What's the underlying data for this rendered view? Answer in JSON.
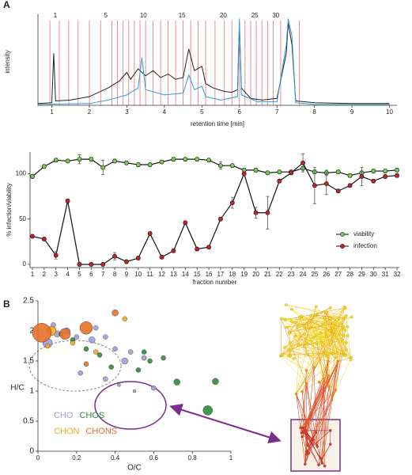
{
  "panel_labels": [
    "A",
    "B"
  ],
  "chart_data": [
    {
      "type": "line",
      "ylabel": "intensity",
      "xlabel": "retention time [min]",
      "xlim": [
        0.63,
        10.2
      ],
      "xticks": [
        1,
        2,
        3,
        4,
        5,
        6,
        7,
        8,
        9,
        10
      ],
      "ylim": [
        0,
        105
      ],
      "series": [
        {
          "color": "#222222",
          "x": [
            0.63,
            1.0,
            1.05,
            1.1,
            1.5,
            2.0,
            2.5,
            2.8,
            3.0,
            3.1,
            3.3,
            3.5,
            3.7,
            3.9,
            4.1,
            4.3,
            4.5,
            4.65,
            4.8,
            5.0,
            5.1,
            5.3,
            5.6,
            5.8,
            5.95,
            6.0,
            6.05,
            6.3,
            6.6,
            7.0,
            7.25,
            7.3,
            7.4,
            7.5,
            8.0,
            9.0,
            10.0
          ],
          "values": [
            2,
            3,
            60,
            5,
            6,
            10,
            20,
            28,
            38,
            30,
            42,
            34,
            40,
            32,
            36,
            30,
            32,
            65,
            40,
            45,
            25,
            20,
            16,
            15,
            18,
            95,
            20,
            8,
            6,
            8,
            60,
            95,
            70,
            5,
            3,
            2,
            2
          ]
        },
        {
          "color": "#2a9fd6",
          "x": [
            0.63,
            2.0,
            2.5,
            3.0,
            3.3,
            3.4,
            3.5,
            4.0,
            4.5,
            4.65,
            4.8,
            5.0,
            5.1,
            5.5,
            5.95,
            6.0,
            6.05,
            6.5,
            7.0,
            7.25,
            7.3,
            7.4,
            7.5,
            8.0,
            10.0
          ],
          "values": [
            1,
            2,
            6,
            12,
            20,
            55,
            18,
            12,
            14,
            35,
            18,
            22,
            10,
            6,
            10,
            100,
            12,
            4,
            4,
            70,
            100,
            80,
            3,
            1,
            1
          ]
        }
      ],
      "fraction_line_color": "#e8707c",
      "fraction_boundaries": [
        0.95,
        1.2,
        1.45,
        1.7,
        2.0,
        2.3,
        2.6,
        2.75,
        2.9,
        3.05,
        3.2,
        3.35,
        3.5,
        3.7,
        3.9,
        4.1,
        4.3,
        4.5,
        4.7,
        4.9,
        5.1,
        5.35,
        5.6,
        5.8,
        6.0,
        6.15,
        6.3,
        6.45,
        6.6,
        6.75,
        6.9,
        7.1,
        7.6
      ],
      "fraction_labels": [
        {
          "x": 1.09,
          "text": "1"
        },
        {
          "x": 2.44,
          "text": "5"
        },
        {
          "x": 3.44,
          "text": "10"
        },
        {
          "x": 4.47,
          "text": "15"
        },
        {
          "x": 5.57,
          "text": "20"
        },
        {
          "x": 6.41,
          "text": "25"
        },
        {
          "x": 6.97,
          "text": "30"
        }
      ]
    },
    {
      "type": "line",
      "ylabel": "% infection/viability",
      "xlabel": "fraction number",
      "x": [
        1,
        2,
        3,
        4,
        5,
        6,
        7,
        8,
        9,
        10,
        11,
        12,
        13,
        14,
        15,
        16,
        17,
        18,
        19,
        20,
        21,
        22,
        23,
        24,
        25,
        26,
        27,
        28,
        29,
        30,
        31,
        32
      ],
      "xlim": [
        0.8,
        32.2
      ],
      "xticks": [
        1,
        2,
        3,
        4,
        5,
        6,
        7,
        8,
        9,
        10,
        11,
        12,
        13,
        14,
        15,
        16,
        17,
        18,
        19,
        20,
        21,
        22,
        23,
        24,
        25,
        26,
        27,
        28,
        29,
        30,
        31,
        32
      ],
      "ylim": [
        -3.5,
        124
      ],
      "yticks": [
        0,
        50,
        100
      ],
      "legend": "lower right",
      "series": [
        {
          "name": "viability",
          "color": "#6fd14f",
          "values": [
            97,
            108,
            115,
            114,
            116,
            116,
            107,
            114,
            112,
            110,
            110,
            113,
            116,
            116,
            116,
            115,
            109,
            109,
            104,
            104,
            101,
            102,
            102,
            106,
            102,
            101,
            102,
            98,
            101,
            103,
            103,
            104
          ],
          "errors": [
            2,
            2,
            2,
            2,
            5,
            2,
            8,
            2,
            2,
            2,
            2,
            2,
            2,
            2,
            2,
            2,
            4,
            2,
            2,
            2,
            2,
            2,
            2,
            2,
            2,
            3,
            2,
            2,
            2,
            2,
            2,
            2
          ]
        },
        {
          "name": "infection",
          "color": "#c8202a",
          "values": [
            31,
            28,
            10,
            70,
            0,
            0,
            0,
            9,
            3,
            7,
            34,
            8,
            15,
            46,
            17,
            19,
            50,
            68,
            100,
            57,
            57,
            92,
            101,
            112,
            87,
            89,
            81,
            87,
            97,
            92,
            97,
            98
          ],
          "errors": [
            2,
            2,
            4,
            2,
            2,
            2,
            2,
            4,
            2,
            2,
            2,
            2,
            2,
            2,
            2,
            2,
            2,
            6,
            2,
            6,
            18,
            2,
            2,
            10,
            20,
            12,
            2,
            2,
            10,
            2,
            2,
            2
          ]
        }
      ]
    },
    {
      "type": "scatter",
      "xlabel": "O/C",
      "ylabel": "H/C",
      "xlim": [
        0,
        1
      ],
      "xticks": [
        0,
        0.2,
        0.4,
        0.6,
        0.8,
        1
      ],
      "ylim": [
        0,
        2.5
      ],
      "yticks": [
        0,
        0.5,
        1,
        1.5,
        2,
        2.5
      ],
      "legend": "lower left",
      "series": [
        {
          "name": "CHO",
          "color": "#9d9fd9",
          "x": [
            0.05,
            0.1,
            0.15,
            0.2,
            0.28,
            0.35,
            0.4,
            0.48,
            0.55,
            0.35,
            0.42,
            0.5,
            0.6,
            0.45,
            0.22,
            0.3,
            0.08
          ],
          "values": [
            1.8,
            1.95,
            2.0,
            1.9,
            1.85,
            1.9,
            1.7,
            1.65,
            1.55,
            1.2,
            1.1,
            1.0,
            1.05,
            1.5,
            1.3,
            2.05,
            2.1
          ],
          "sizes": [
            6,
            4,
            4,
            3,
            4,
            3,
            3,
            3,
            3,
            3,
            2,
            2,
            3,
            4,
            3,
            3,
            3
          ]
        },
        {
          "name": "CHOS",
          "color": "#2e8b3a",
          "x": [
            0.12,
            0.18,
            0.25,
            0.32,
            0.38,
            0.52,
            0.58,
            0.72,
            0.88,
            0.92,
            0.55,
            0.65
          ],
          "values": [
            1.95,
            1.85,
            1.7,
            1.6,
            1.4,
            1.35,
            1.5,
            1.15,
            0.68,
            1.16,
            1.65,
            1.55
          ],
          "sizes": [
            3,
            3,
            3,
            3,
            3,
            3,
            3,
            4,
            6,
            4,
            3,
            3
          ]
        },
        {
          "name": "CHON",
          "color": "#f5a623",
          "x": [
            0.07,
            0.18,
            0.3,
            0.05,
            0.45
          ],
          "values": [
            2.0,
            1.8,
            1.65,
            1.75,
            2.2
          ],
          "sizes": [
            6,
            3,
            3,
            3,
            3
          ]
        },
        {
          "name": "CHONS",
          "color": "#e8702a",
          "x": [
            0.02,
            0.14,
            0.25,
            0.4,
            0.25
          ],
          "values": [
            1.97,
            1.95,
            2.05,
            2.3,
            1.45
          ],
          "sizes": [
            12,
            7,
            8,
            4,
            3
          ]
        }
      ]
    }
  ]
}
